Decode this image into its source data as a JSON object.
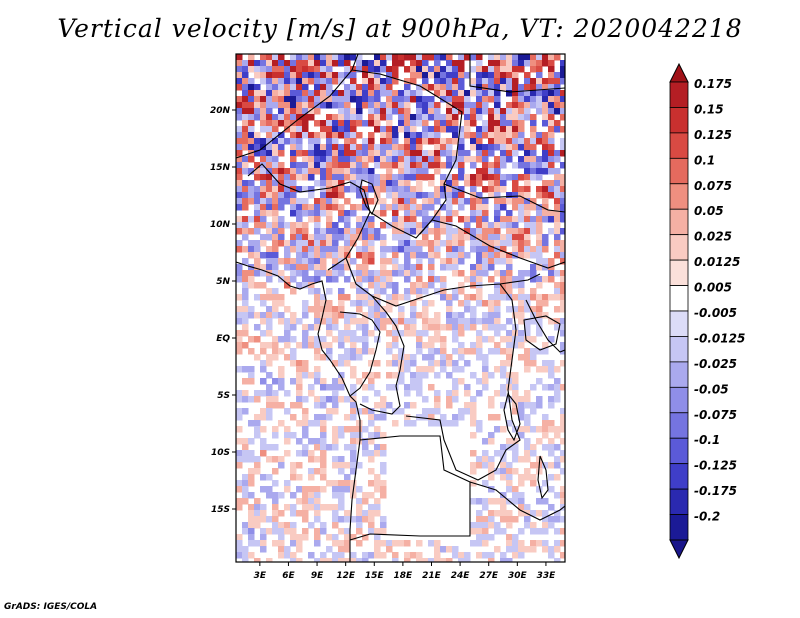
{
  "title": "Vertical velocity [m/s] at 900hPa, VT: 2020042218",
  "credit": "GrADS: IGES/COLA",
  "map": {
    "y_ticks": [
      {
        "label": "20N",
        "lat": 20
      },
      {
        "label": "15N",
        "lat": 15
      },
      {
        "label": "10N",
        "lat": 10
      },
      {
        "label": "5N",
        "lat": 5
      },
      {
        "label": "EQ",
        "lat": 0
      },
      {
        "label": "5S",
        "lat": -5
      },
      {
        "label": "10S",
        "lat": -10
      },
      {
        "label": "15S",
        "lat": -15
      }
    ],
    "x_ticks": [
      {
        "label": "3E",
        "lon": 3
      },
      {
        "label": "6E",
        "lon": 6
      },
      {
        "label": "9E",
        "lon": 9
      },
      {
        "label": "12E",
        "lon": 12
      },
      {
        "label": "15E",
        "lon": 15
      },
      {
        "label": "18E",
        "lon": 18
      },
      {
        "label": "21E",
        "lon": 21
      },
      {
        "label": "24E",
        "lon": 24
      },
      {
        "label": "27E",
        "lon": 27
      },
      {
        "label": "30E",
        "lon": 30
      },
      {
        "label": "33E",
        "lon": 33
      }
    ]
  },
  "colorbar": {
    "levels": [
      "0.175",
      "0.15",
      "0.125",
      "0.1",
      "0.075",
      "0.05",
      "0.025",
      "0.0125",
      "0.005",
      "-0.005",
      "-0.0125",
      "-0.025",
      "-0.05",
      "-0.075",
      "-0.1",
      "-0.125",
      "-0.175",
      "-0.2"
    ],
    "colors": [
      "#b41e24",
      "#c9302f",
      "#d94a43",
      "#e56a5e",
      "#ef8f80",
      "#f5b0a4",
      "#f9cbc2",
      "#fbe0da",
      "#ffffff",
      "#dcdcf8",
      "#c6c6f4",
      "#aaa9ee",
      "#8f8ee8",
      "#7574e0",
      "#5b5ad8",
      "#3f3ec8",
      "#2a29b0",
      "#1b1a96"
    ],
    "top_color": "#a01218",
    "bottom_color": "#1a168a"
  }
}
